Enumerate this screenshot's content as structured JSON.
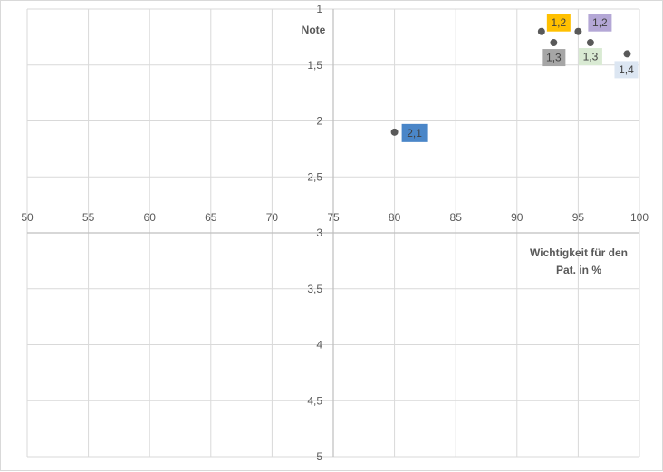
{
  "chart_data": {
    "type": "scatter",
    "xlabel": "Wichtigkeit für den Pat. in %",
    "ylabel": "Note",
    "xlim": [
      50,
      100
    ],
    "ylim": [
      1,
      5
    ],
    "y_reversed": true,
    "x_axis_crosses_y": 3,
    "y_axis_crosses_x": 75,
    "x_ticks": [
      "50",
      "55",
      "60",
      "65",
      "70",
      "75",
      "80",
      "85",
      "90",
      "95",
      "100"
    ],
    "y_ticks": [
      "1",
      "1,5",
      "2",
      "2,5",
      "3",
      "3,5",
      "4",
      "4,5",
      "5"
    ],
    "grid": true,
    "points": [
      {
        "x": 80,
        "y": 2.1,
        "label": "2,1",
        "color": "#4a86c8",
        "text_color": "#1f3f66"
      },
      {
        "x": 92,
        "y": 1.2,
        "label": "1,2",
        "color": "#ffc000",
        "text_color": "#5a4200"
      },
      {
        "x": 95,
        "y": 1.2,
        "label": "1,2",
        "color": "#b4a7d6",
        "text_color": "#3d3566"
      },
      {
        "x": 93,
        "y": 1.3,
        "label": "1,3",
        "color": "#a6a6a6",
        "text_color": "#404040"
      },
      {
        "x": 96,
        "y": 1.3,
        "label": "1,3",
        "color": "#d9ead3",
        "text_color": "#404040"
      },
      {
        "x": 99,
        "y": 1.4,
        "label": "1,4",
        "color": "#dce6f2",
        "text_color": "#404040"
      }
    ],
    "marker_color": "#595959",
    "grid_color": "#d9d9d9",
    "axis_color": "#bfbfbf"
  }
}
